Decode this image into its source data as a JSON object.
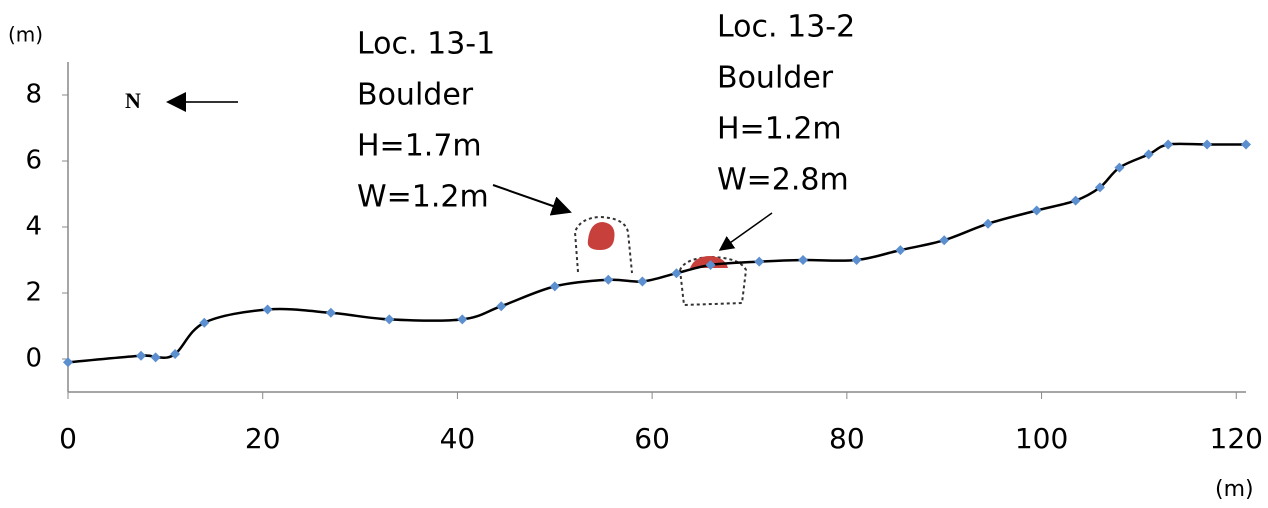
{
  "chart_data": {
    "type": "line",
    "x_label": "(m)",
    "y_label": "(m)",
    "north_label": "N",
    "x": [
      0,
      7.5,
      9,
      11,
      14,
      20.5,
      27,
      33,
      40.5,
      44.5,
      50,
      55.5,
      59,
      62.5,
      66,
      71,
      75.5,
      81,
      85.5,
      90,
      94.5,
      99.5,
      103.5,
      106,
      108,
      111,
      113,
      117,
      121
    ],
    "values": [
      -0.1,
      0.1,
      0.05,
      0.15,
      1.1,
      1.5,
      1.4,
      1.2,
      1.2,
      1.6,
      2.2,
      2.4,
      2.35,
      2.6,
      2.85,
      2.95,
      3.0,
      3.0,
      3.3,
      3.6,
      4.1,
      4.5,
      4.8,
      5.2,
      5.8,
      6.2,
      6.5,
      6.5,
      6.5
    ],
    "color": "#000000",
    "marker_color": "#5b8fd0",
    "xlim": [
      0,
      121
    ],
    "xticks": [
      0,
      20,
      40,
      60,
      80,
      100,
      120
    ],
    "ylim": [
      -1,
      9
    ],
    "yticks": [
      0,
      2,
      4,
      6,
      8
    ],
    "annotations": [
      {
        "lines": [
          "Loc. 13-1",
          "Boulder",
          "H=1.7m",
          "W=1.2m"
        ]
      },
      {
        "lines": [
          "Loc. 13-2",
          "Boulder",
          "H=1.2m",
          "W=2.8m"
        ]
      }
    ]
  }
}
